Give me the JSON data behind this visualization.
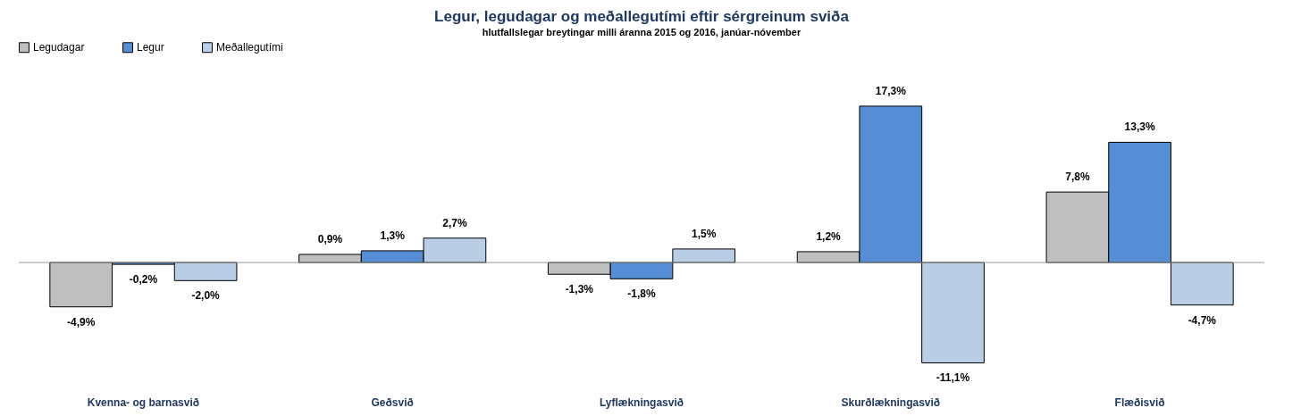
{
  "chart_data": {
    "type": "bar",
    "title": "Legur, legudagar  og meðallegutími eftir sérgreinum sviða",
    "subtitle": "hlutfallslegar breytingar milli áranna 2015 og 2016, janúar-nóvember",
    "categories": [
      "Kvenna- og barnasvið",
      "Geðsvið",
      "Lyflækningasvið",
      "Skurðlækningasvið",
      "Flæðisvið"
    ],
    "series": [
      {
        "name": "Legudagar",
        "color": "#bfbfbf",
        "values": [
          -4.9,
          0.9,
          -1.3,
          1.2,
          7.8
        ],
        "value_labels": [
          "-4,9%",
          "0,9%",
          "-1,3%",
          "1,2%",
          "7,8%"
        ]
      },
      {
        "name": "Legur",
        "color": "#558ed5",
        "values": [
          -0.2,
          1.3,
          -1.8,
          17.3,
          13.3
        ],
        "value_labels": [
          "-0,2%",
          "1,3%",
          "-1,8%",
          "17,3%",
          "13,3%"
        ]
      },
      {
        "name": "Meðallegutími",
        "color": "#b9cde5",
        "values": [
          -2.0,
          2.7,
          1.5,
          -11.1,
          -4.7
        ],
        "value_labels": [
          "-2,0%",
          "2,7%",
          "1,5%",
          "-11,1%",
          "-4,7%"
        ]
      }
    ],
    "legend": "top left",
    "grid": false
  }
}
